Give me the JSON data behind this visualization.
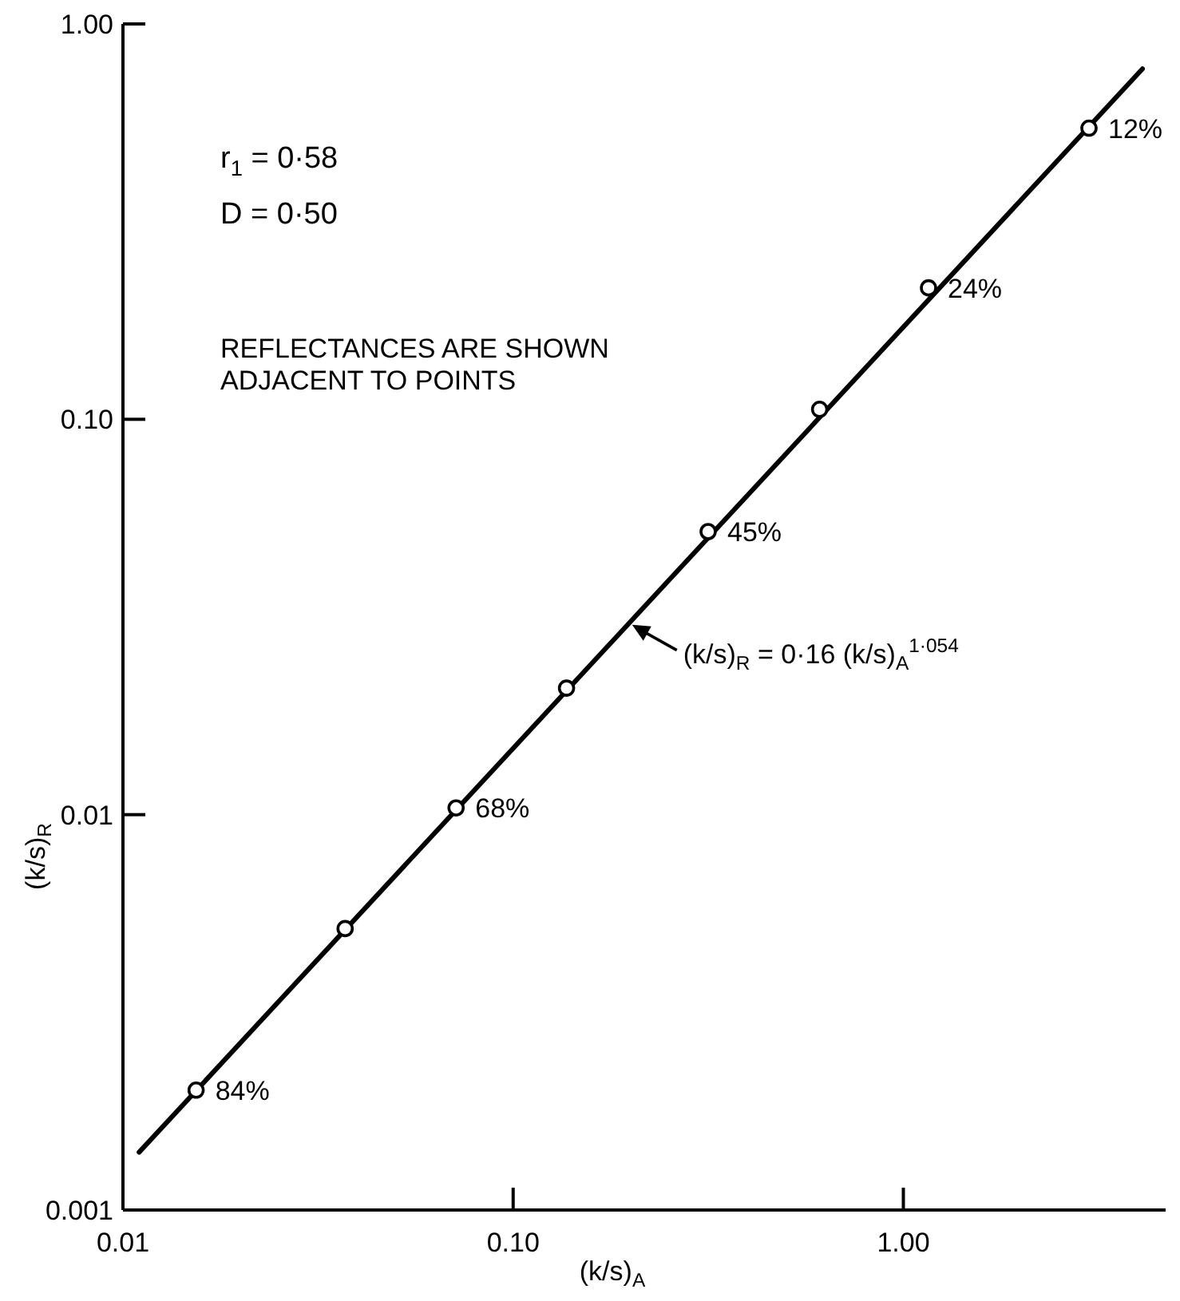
{
  "chart_data": {
    "type": "scatter",
    "xlabel": "(k/s)$_{A}$",
    "ylabel": "(k/s)$_{R}$",
    "log": "xy",
    "grid": false,
    "xlim": [
      0.01,
      4.7
    ],
    "ylim": [
      0.001,
      1
    ],
    "xticks": [
      {
        "value": 0.01,
        "label": "0.01"
      },
      {
        "value": 0.1,
        "label": "0.10"
      },
      {
        "value": 1,
        "label": "1.00"
      }
    ],
    "yticks": [
      {
        "value": 0.001,
        "label": "0.001"
      },
      {
        "value": 0.01,
        "label": "0.01"
      },
      {
        "value": 0.1,
        "label": "0.10"
      },
      {
        "value": 1,
        "label": "1.00"
      }
    ],
    "series": [
      {
        "type": "line",
        "color": "#000000",
        "marker": "none",
        "line_style": "solid",
        "x": [
          0.011,
          4.1
        ],
        "values": [
          0.0014,
          0.77
        ]
      },
      {
        "color": "#000000",
        "marker": "circle",
        "x": [
          0.0154,
          0.0371,
          0.0714,
          0.137,
          0.316,
          0.61,
          1.16,
          2.99
        ],
        "values": [
          0.00201,
          0.00515,
          0.0104,
          0.0209,
          0.052,
          0.106,
          0.215,
          0.545
        ]
      }
    ],
    "annotations": [
      "r$_{1}$ = 0·58",
      "D = 0·50",
      "REFLECTANCES ARE SHOWN ADJACENT TO POINTS",
      {
        "text": "(k/s)$_{R}$ = 0·16 (k/s)$_{A}$$^{1·054}$",
        "x": 0.198,
        "y": 0.0308
      },
      {
        "text": "84%",
        "x": 0.0154,
        "y": 0.00201
      },
      {
        "text": "68%",
        "x": 0.0714,
        "y": 0.0104
      },
      {
        "text": "45%",
        "x": 0.316,
        "y": 0.052
      },
      {
        "text": "24%",
        "x": 1.16,
        "y": 0.215
      },
      {
        "text": "12%",
        "x": 2.99,
        "y": 0.545
      }
    ]
  }
}
